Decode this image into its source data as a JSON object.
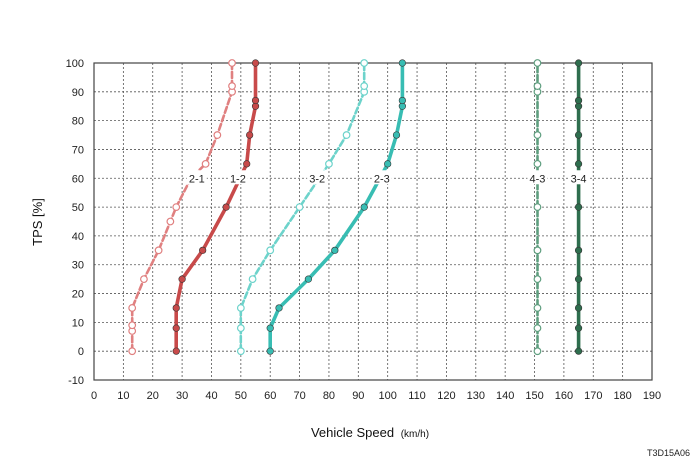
{
  "chart_data": {
    "type": "line",
    "xlabel": "Vehicle Speed",
    "xunit": "(km/h)",
    "ylabel": "TPS [%]",
    "xlim": [
      0,
      190
    ],
    "ylim": [
      -10,
      100
    ],
    "xticks": [
      0,
      10,
      20,
      30,
      40,
      50,
      60,
      70,
      80,
      90,
      100,
      110,
      120,
      130,
      140,
      150,
      160,
      170,
      180,
      190
    ],
    "yticks": [
      -10,
      0,
      10,
      20,
      30,
      40,
      50,
      60,
      70,
      80,
      90,
      100
    ],
    "grid": true,
    "figure_code": "T3D15A06",
    "colors": {
      "downshift_red": "#e08080",
      "upshift_red": "#c84a4a",
      "downshift_cyan": "#6dd3cb",
      "upshift_cyan": "#38bdb3",
      "downshift_green": "#5f9e7f",
      "upshift_green": "#2e6e4e"
    },
    "series": [
      {
        "name": "2-1",
        "style": "dashed",
        "marker": "open",
        "color": "#e08080",
        "label_pos": [
          35,
          60
        ],
        "x": [
          13,
          13,
          13,
          13,
          17,
          22,
          26,
          28,
          33,
          38,
          42,
          47,
          47,
          47
        ],
        "y": [
          0,
          7,
          9,
          15,
          25,
          35,
          45,
          50,
          60,
          65,
          75,
          90,
          92,
          100
        ]
      },
      {
        "name": "1-2",
        "style": "solid",
        "marker": "filled",
        "color": "#c84a4a",
        "label_pos": [
          49,
          60
        ],
        "x": [
          28,
          28,
          28,
          30,
          37,
          45,
          52,
          53,
          55,
          55,
          55
        ],
        "y": [
          0,
          8,
          15,
          25,
          35,
          50,
          65,
          75,
          85,
          87,
          100
        ]
      },
      {
        "name": "3-2",
        "style": "dashed",
        "marker": "open",
        "color": "#6dd3cb",
        "label_pos": [
          76,
          60
        ],
        "x": [
          50,
          50,
          50,
          54,
          60,
          70,
          80,
          86,
          92,
          92,
          92
        ],
        "y": [
          0,
          8,
          15,
          25,
          35,
          50,
          65,
          75,
          90,
          92,
          100
        ]
      },
      {
        "name": "2-3",
        "style": "solid",
        "marker": "filled",
        "color": "#38bdb3",
        "label_pos": [
          98,
          60
        ],
        "x": [
          60,
          60,
          63,
          73,
          82,
          92,
          100,
          103,
          105,
          105,
          105
        ],
        "y": [
          0,
          8,
          15,
          25,
          35,
          50,
          65,
          75,
          85,
          87,
          100
        ]
      },
      {
        "name": "4-3",
        "style": "dashed",
        "marker": "open",
        "color": "#5f9e7f",
        "label_pos": [
          151,
          60
        ],
        "x": [
          151,
          151,
          151,
          151,
          151,
          151,
          151,
          151,
          151,
          151,
          151
        ],
        "y": [
          0,
          8,
          15,
          25,
          35,
          50,
          65,
          75,
          90,
          92,
          100
        ]
      },
      {
        "name": "3-4",
        "style": "solid",
        "marker": "filled",
        "color": "#2e6e4e",
        "label_pos": [
          165,
          60
        ],
        "x": [
          165,
          165,
          165,
          165,
          165,
          165,
          165,
          165,
          165,
          165,
          165
        ],
        "y": [
          0,
          8,
          15,
          25,
          35,
          50,
          65,
          75,
          85,
          87,
          100
        ]
      }
    ]
  }
}
